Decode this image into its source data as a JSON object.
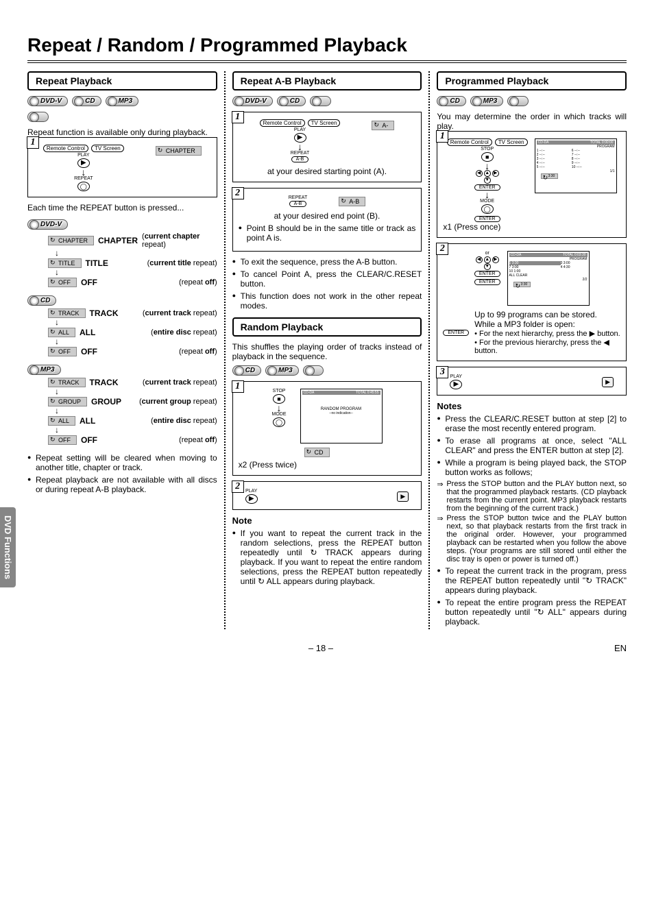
{
  "page": {
    "title": "Repeat / Random / Programmed Playback",
    "side_tab": "DVD Functions",
    "page_num": "– 18 –",
    "lang": "EN"
  },
  "discs": {
    "dvdv": "DVD-V",
    "cd": "CD",
    "mp3": "MP3",
    "cdr": ""
  },
  "labels": {
    "remote": "Remote Control",
    "tvscreen": "TV Screen",
    "play": "PLAY",
    "repeat": "REPEAT",
    "ab": "A-B",
    "stop": "STOP",
    "mode": "MODE",
    "enter": "ENTER",
    "random": "RANDOM"
  },
  "col1": {
    "title": "Repeat Playback",
    "intro": "Repeat function is available only during playback.",
    "osd_chapter": "CHAPTER",
    "each_time": "Each time the REPEAT button is pressed...",
    "dvd_rows": [
      {
        "osd": "CHAPTER",
        "name": "CHAPTER",
        "desc": "(current chapter repeat)"
      },
      {
        "osd": "TITLE",
        "name": "TITLE",
        "desc": "(current title repeat)"
      },
      {
        "osd": "OFF",
        "name": "OFF",
        "desc": "(repeat off)"
      }
    ],
    "cd_rows": [
      {
        "osd": "TRACK",
        "name": "TRACK",
        "desc": "(current track repeat)"
      },
      {
        "osd": "ALL",
        "name": "ALL",
        "desc": "(entire disc repeat)"
      },
      {
        "osd": "OFF",
        "name": "OFF",
        "desc": "(repeat off)"
      }
    ],
    "mp3_rows": [
      {
        "osd": "TRACK",
        "name": "TRACK",
        "desc": "(current track repeat)"
      },
      {
        "osd": "GROUP",
        "name": "GROUP",
        "desc": "(current group repeat)"
      },
      {
        "osd": "ALL",
        "name": "ALL",
        "desc": "(entire disc repeat)"
      },
      {
        "osd": "OFF",
        "name": "OFF",
        "desc": "(repeat off)"
      }
    ],
    "notes": [
      "Repeat setting will be cleared when moving to another title, chapter or track.",
      "Repeat playback are not available with all discs or during repeat A-B playback."
    ]
  },
  "col2": {
    "ab_title": "Repeat A-B Playback",
    "step1_osd": "A-",
    "step1_text": "at your desired starting point (A).",
    "step2_osd": "A-B",
    "step2_text": "at your desired end point (B).",
    "ab_notes": [
      "Point B should be in the same title or track as point A is.",
      "To exit the sequence, press the A-B button.",
      "To cancel Point A, press the CLEAR/C.RESET button.",
      "This function does not work in the other repeat modes."
    ],
    "rand_title": "Random Playback",
    "rand_intro": "This shuffles the playing order of tracks instead of playback in the sequence.",
    "rand_screen1_hdr_l": "CD-DA",
    "rand_screen1_hdr_r": "TOTAL 0:45:55",
    "rand_screen1_line": "RANDOM PROGRAM",
    "rand_screen1_sub": "--no indication--",
    "rand_osd": "CD",
    "rand_press": "x2 (Press twice)",
    "note_head": "Note",
    "rand_note": "If you want to repeat the current track in the random selections, press the REPEAT button repeatedly until ↻ TRACK appears during playback. If you want to repeat the entire random selections, press the REPEAT button repeatedly until ↻ ALL appears during playback."
  },
  "col3": {
    "title": "Programmed Playback",
    "intro": "You may determine the order in which tracks will play.",
    "press_once": "x1 (Press once)",
    "upto99": "Up to 99 programs can be stored.",
    "mp3_open": "While a MP3 folder is open:",
    "next_h": "• For the next hierarchy, press the ▶ button.",
    "prev_h": "• For the previous hierarchy, press the ◀ button.",
    "notes_head": "Notes",
    "notes": [
      "Press the CLEAR/C.RESET button at step [2] to erase the most recently entered program.",
      "To erase all programs at once, select \"ALL CLEAR\" and press the ENTER button at step [2].",
      "While a program is being played back, the STOP button works as follows;"
    ],
    "sub": [
      "Press the STOP button and the PLAY button next, so that the programmed playback restarts. (CD playback restarts from the current point. MP3 playback restarts from the beginning of the current track.)",
      "Press the STOP button twice and the PLAY button next, so that playback restarts from the first track in the original order. However, your programmed playback can be restarted when you follow the above steps. (Your programs are still stored until either the disc tray is open or power is turned off.)"
    ],
    "notes2": [
      "To repeat the current track in the program, press the REPEAT button repeatedly until \"↻ TRACK\" appears during playback.",
      "To repeat the entire program press the REPEAT button repeatedly until \"↻ ALL\" appears during playback."
    ],
    "screen": {
      "hdr_l": "CD-DA",
      "hdr_r": "TOTAL 0:00:00",
      "program": "PROGRAM",
      "rows": [
        "1",
        "2",
        "3",
        "4",
        "5",
        "6",
        "7",
        "8",
        "9",
        "10"
      ],
      "allclear": "ALL CLEAR",
      "time": "3:30"
    }
  }
}
